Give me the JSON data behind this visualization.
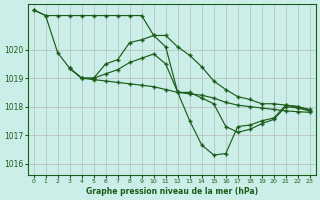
{
  "title": "Graphe pression niveau de la mer (hPa)",
  "bg_color": "#cceee8",
  "grid_color": "#b0b0b0",
  "line_color": "#1a5c1a",
  "xlim": [
    -0.5,
    23.5
  ],
  "ylim": [
    1015.6,
    1021.6
  ],
  "xticks": [
    0,
    1,
    2,
    3,
    4,
    5,
    6,
    7,
    8,
    9,
    10,
    11,
    12,
    13,
    14,
    15,
    16,
    17,
    18,
    19,
    20,
    21,
    22,
    23
  ],
  "yticks": [
    1016,
    1017,
    1018,
    1019,
    1020
  ],
  "series": [
    {
      "x": [
        0,
        1,
        2,
        3,
        4,
        5,
        6,
        7,
        8,
        9,
        10,
        11,
        12,
        13,
        14,
        15,
        16,
        17,
        18,
        19,
        20,
        21,
        22,
        23
      ],
      "y": [
        1021.4,
        1021.2,
        1021.2,
        1021.2,
        1021.2,
        1021.2,
        1021.2,
        1021.2,
        1021.2,
        1021.2,
        1020.5,
        1020.5,
        1020.1,
        1019.8,
        1019.4,
        1018.9,
        1018.6,
        1018.35,
        1018.25,
        1018.1,
        1018.1,
        1018.05,
        1018.0,
        1017.9
      ]
    },
    {
      "x": [
        0,
        1,
        2,
        3,
        4,
        5,
        6,
        7,
        8,
        9,
        10,
        11,
        12,
        13,
        14,
        15,
        16,
        17,
        18,
        19,
        20,
        21,
        22,
        23
      ],
      "y": [
        1021.4,
        1021.2,
        1019.9,
        1019.35,
        1019.0,
        1018.95,
        1018.9,
        1018.85,
        1018.8,
        1018.75,
        1018.7,
        1018.6,
        1018.5,
        1018.45,
        1018.4,
        1018.3,
        1018.15,
        1018.05,
        1018.0,
        1017.95,
        1017.9,
        1017.85,
        1017.82,
        1017.8
      ]
    },
    {
      "x": [
        3,
        4,
        5,
        6,
        7,
        8,
        9,
        10,
        11,
        12,
        13,
        14,
        15,
        16,
        17,
        18,
        19,
        20,
        21,
        22,
        23
      ],
      "y": [
        1019.35,
        1019.0,
        1019.0,
        1019.5,
        1019.65,
        1020.25,
        1020.35,
        1020.5,
        1020.1,
        1018.5,
        1017.5,
        1016.65,
        1016.3,
        1016.35,
        1017.3,
        1017.35,
        1017.5,
        1017.6,
        1018.05,
        1018.0,
        1017.85
      ]
    },
    {
      "x": [
        3,
        4,
        5,
        6,
        7,
        8,
        9,
        10,
        11,
        12,
        13,
        14,
        15,
        16,
        17,
        18,
        19,
        20,
        21,
        22,
        23
      ],
      "y": [
        1019.35,
        1019.0,
        1019.0,
        1019.15,
        1019.3,
        1019.55,
        1019.7,
        1019.85,
        1019.5,
        1018.5,
        1018.5,
        1018.3,
        1018.1,
        1017.3,
        1017.1,
        1017.2,
        1017.4,
        1017.55,
        1018.0,
        1017.95,
        1017.85
      ]
    }
  ]
}
